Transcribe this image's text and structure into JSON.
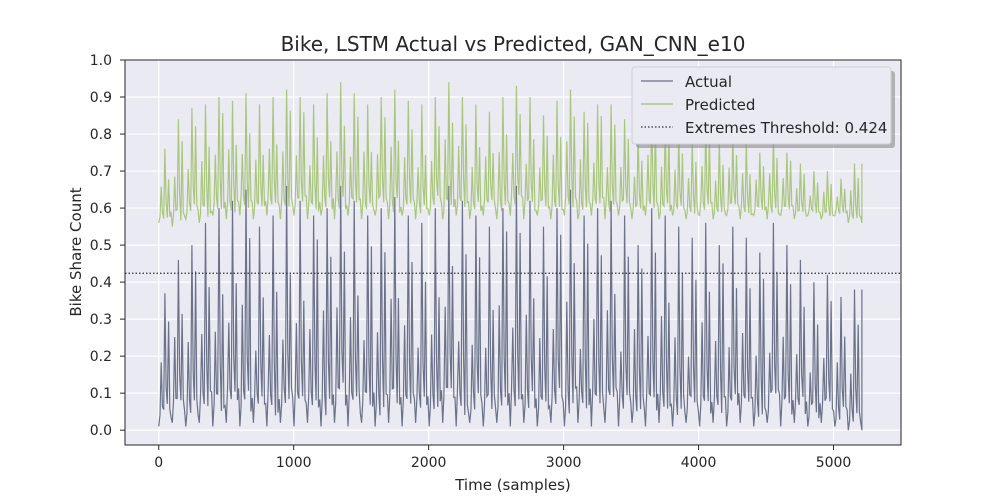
{
  "chart_data": {
    "type": "line",
    "title": "Bike, LSTM Actual vs Predicted, GAN_CNN_e10",
    "xlabel": "Time (samples)",
    "ylabel": "Bike Share Count",
    "xlim": [
      -250,
      5500
    ],
    "ylim": [
      -0.04,
      1.0
    ],
    "xticks": [
      0,
      1000,
      2000,
      3000,
      4000,
      5000
    ],
    "yticks": [
      0.0,
      0.1,
      0.2,
      0.3,
      0.4,
      0.5,
      0.6,
      0.7,
      0.8,
      0.9,
      1.0
    ],
    "grid": true,
    "legend_position": "top-right",
    "threshold": {
      "name": "Extremes Threshold: 0.424",
      "value": 0.424,
      "color": "#333333"
    },
    "series": [
      {
        "name": "Actual",
        "color": "#6b7289",
        "x_range": [
          0,
          5210
        ],
        "daily_peak": [
          0.37,
          0.46,
          0.5,
          0.56,
          0.6,
          0.62,
          0.65,
          0.55,
          0.58,
          0.66,
          0.62,
          0.58,
          0.6,
          0.66,
          0.62,
          0.58,
          0.6,
          0.63,
          0.58,
          0.56,
          0.6,
          0.66,
          0.62,
          0.58,
          0.55,
          0.6,
          0.66,
          0.62,
          0.55,
          0.6,
          0.65,
          0.58,
          0.6,
          0.62,
          0.58,
          0.5,
          0.6,
          0.58,
          0.55,
          0.52,
          0.56,
          0.5,
          0.55,
          0.52,
          0.48,
          0.56,
          0.5,
          0.46,
          0.4,
          0.42,
          0.36,
          0.38
        ],
        "daily_trough": [
          0.01,
          0.02,
          0.01,
          0.02,
          0.01,
          0.02,
          0.01,
          0.02,
          0.01,
          0.02,
          0.01,
          0.02,
          0.01,
          0.02,
          0.01,
          0.02,
          0.01,
          0.02,
          0.01,
          0.02,
          0.01,
          0.02,
          0.01,
          0.02,
          0.01,
          0.02,
          0.01,
          0.02,
          0.01,
          0.02,
          0.01,
          0.02,
          0.01,
          0.02,
          0.01,
          0.02,
          0.01,
          0.02,
          0.01,
          0.02,
          0.01,
          0.02,
          0.01,
          0.02,
          0.01,
          0.02,
          0.01,
          0.02,
          0.01,
          0.02,
          0.01,
          0.0
        ]
      },
      {
        "name": "Predicted",
        "color": "#9fc06a",
        "x_range": [
          0,
          5210
        ],
        "daily_peak": [
          0.76,
          0.84,
          0.87,
          0.88,
          0.9,
          0.89,
          0.91,
          0.88,
          0.9,
          0.92,
          0.9,
          0.88,
          0.91,
          0.94,
          0.91,
          0.88,
          0.9,
          0.92,
          0.89,
          0.88,
          0.9,
          0.94,
          0.9,
          0.88,
          0.86,
          0.9,
          0.93,
          0.9,
          0.85,
          0.89,
          0.92,
          0.86,
          0.88,
          0.88,
          0.84,
          0.8,
          0.86,
          0.84,
          0.8,
          0.78,
          0.82,
          0.78,
          0.8,
          0.78,
          0.75,
          0.8,
          0.75,
          0.72,
          0.7,
          0.7,
          0.68,
          0.72
        ],
        "daily_trough": [
          0.56,
          0.55,
          0.57,
          0.56,
          0.58,
          0.57,
          0.58,
          0.57,
          0.58,
          0.57,
          0.58,
          0.57,
          0.58,
          0.57,
          0.58,
          0.57,
          0.58,
          0.57,
          0.58,
          0.57,
          0.58,
          0.57,
          0.58,
          0.57,
          0.58,
          0.57,
          0.58,
          0.57,
          0.58,
          0.57,
          0.58,
          0.57,
          0.58,
          0.57,
          0.58,
          0.57,
          0.58,
          0.57,
          0.58,
          0.57,
          0.58,
          0.57,
          0.58,
          0.57,
          0.58,
          0.57,
          0.58,
          0.57,
          0.58,
          0.57,
          0.58,
          0.56
        ]
      }
    ]
  }
}
